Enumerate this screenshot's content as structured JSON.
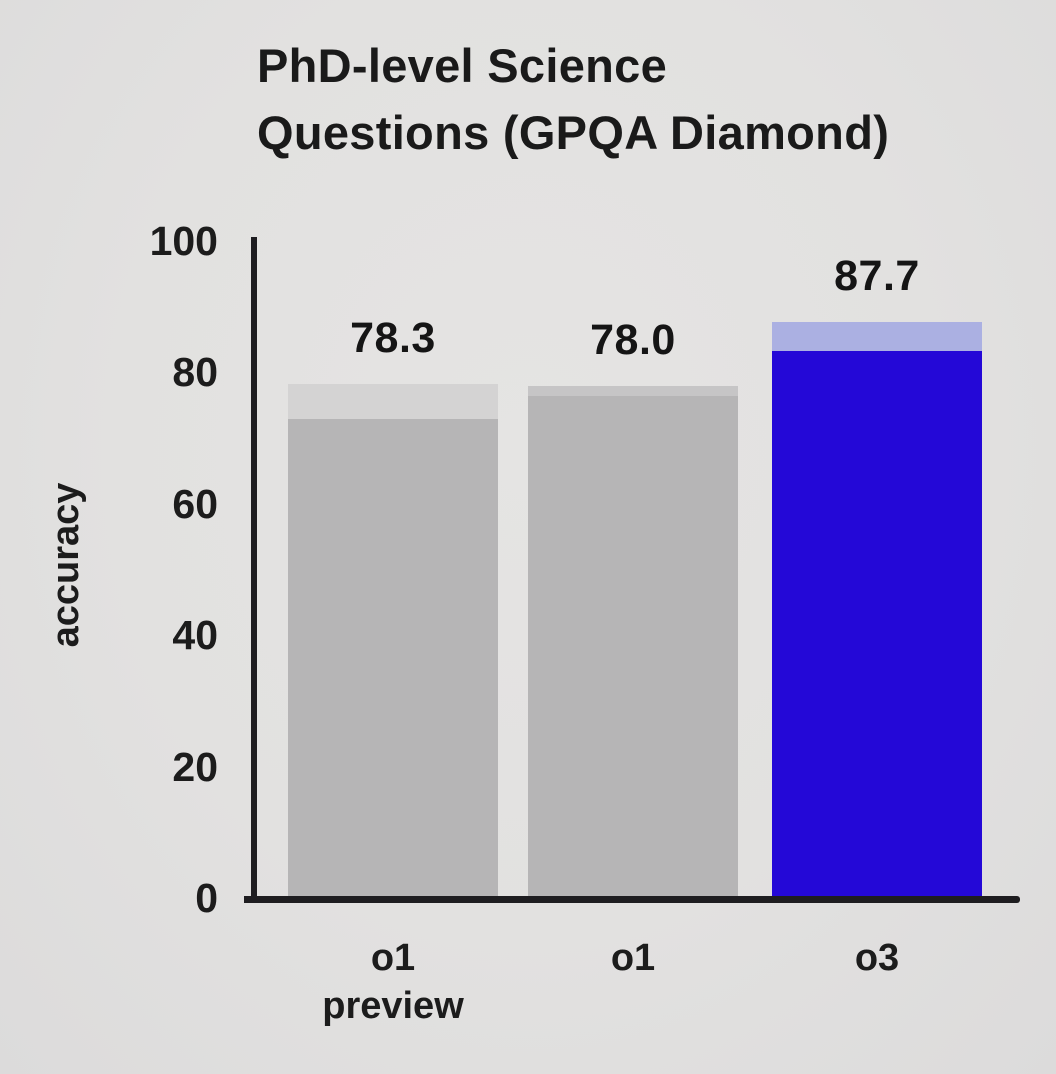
{
  "title": {
    "line1": "PhD-level Science",
    "line2": "Questions (GPQA Diamond)"
  },
  "colors": {
    "background": "#e2e1e0",
    "axis": "#1e1d20",
    "text": "#1a1a1a",
    "gray_bar": "#b6b5b6",
    "gray_bar_cap": "#d4d3d3",
    "gray_bar_cap_subtle": "#c6c5c6",
    "accent_blue": "#2408d7",
    "accent_blue_cap": "#abb0e2"
  },
  "chart_data": {
    "type": "bar",
    "title": "PhD-level Science Questions (GPQA Diamond)",
    "xlabel": "",
    "ylabel": "accuracy",
    "ylim": [
      0,
      100
    ],
    "yticks": [
      "0",
      "20",
      "40",
      "60",
      "80",
      "100"
    ],
    "grid": false,
    "legend": null,
    "categories": [
      "o1 preview",
      "o1",
      "o3"
    ],
    "values": [
      78.3,
      78.0,
      87.7
    ],
    "bars": [
      {
        "category": "o1 preview",
        "label_lines": [
          "o1",
          "preview"
        ],
        "value": 78.3,
        "value_label": "78.3",
        "solid_segment_top": 72.9,
        "body_color": "#b6b5b6",
        "cap_color": "#d4d3d3"
      },
      {
        "category": "o1",
        "label_lines": [
          "o1"
        ],
        "value": 78.0,
        "value_label": "78.0",
        "solid_segment_top": 76.4,
        "body_color": "#b6b5b6",
        "cap_color": "#c6c5c6"
      },
      {
        "category": "o3",
        "label_lines": [
          "o3"
        ],
        "value": 87.7,
        "value_label": "87.7",
        "solid_segment_top": 83.3,
        "body_color": "#2408d7",
        "cap_color": "#abb0e2"
      }
    ]
  }
}
